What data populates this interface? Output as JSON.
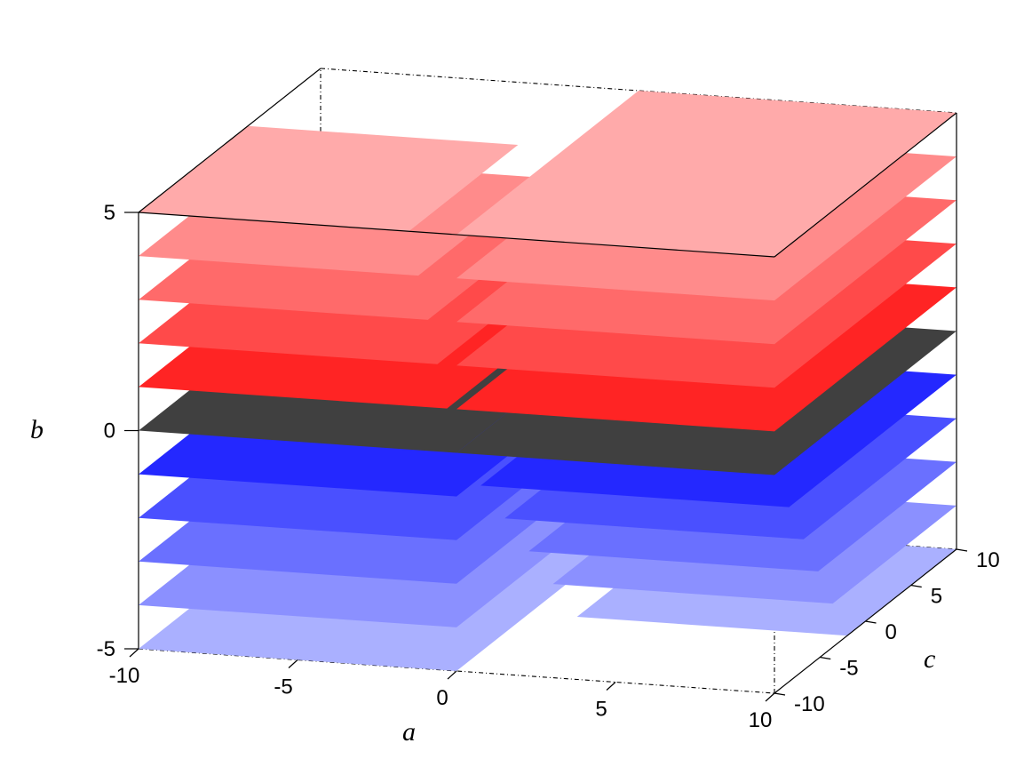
{
  "chart_data": {
    "type": "area",
    "title": "",
    "axes": {
      "x": {
        "label": "a",
        "ticks": [
          "-10",
          "-5",
          "0",
          "5",
          "10"
        ],
        "range": [
          -10,
          10
        ]
      },
      "y": {
        "label": "c",
        "ticks": [
          "-10",
          "-5",
          "0",
          "5",
          "10"
        ],
        "range": [
          -10,
          10
        ]
      },
      "z": {
        "label": "b",
        "ticks": [
          "-5",
          "0",
          "5"
        ],
        "range": [
          -5,
          5
        ]
      }
    },
    "slice_levels": [
      -5,
      -4,
      -3,
      -2,
      -1,
      0,
      1,
      2,
      3,
      4,
      5
    ],
    "slice_colors": {
      "-5": "#aab0ff",
      "-4": "#8b90ff",
      "-3": "#6a70ff",
      "-2": "#4a50ff",
      "-1": "#2428ff",
      "0": "#404040",
      "1": "#ff2424",
      "2": "#ff4a4a",
      "3": "#ff6a6a",
      "4": "#ff8b8b",
      "5": "#ffaaaa"
    },
    "regions": [
      {
        "side": "a < 0",
        "levels": [
          -5,
          -4,
          -3,
          -2,
          -1,
          0
        ],
        "extent": "full strip a in [-10,0]"
      },
      {
        "side": "a < 0",
        "levels": [
          1,
          2,
          3,
          4,
          5
        ],
        "extent": "strip a in [-10,0] shrinking as b grows"
      },
      {
        "side": "a > 0",
        "levels": [
          0,
          1,
          2,
          3,
          4,
          5
        ],
        "extent": "full strip a in [0,10]"
      },
      {
        "side": "a > 0",
        "levels": [
          -1,
          -2,
          -3,
          -4,
          -5
        ],
        "extent": "strip a in [0,10] shrinking as b decreases"
      }
    ],
    "grid": false,
    "box": true
  }
}
